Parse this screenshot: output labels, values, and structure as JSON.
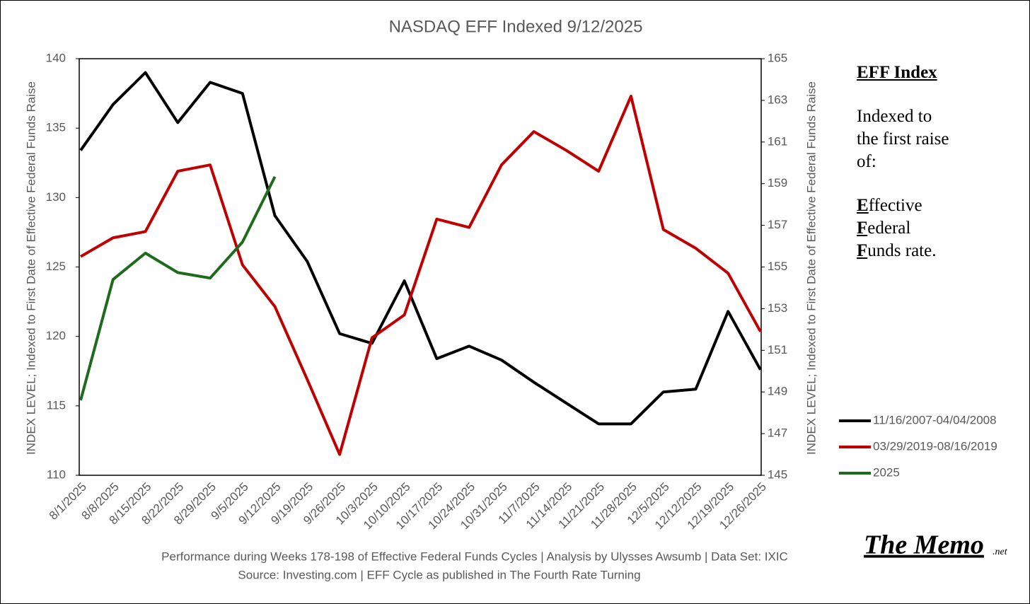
{
  "chart_data": {
    "type": "line",
    "title": "NASDAQ EFF Indexed 9/12/2025",
    "y_label": "INDEX LEVEL; Indexed to First Date of Effective Federal Funds Raise",
    "y2_label": "INDEX LEVEL; Indexed to First Date of Effective Federal Funds Raise",
    "categories": [
      "8/1/2025",
      "8/8/2025",
      "8/15/2025",
      "8/22/2025",
      "8/29/2025",
      "9/5/2025",
      "9/12/2025",
      "9/19/2025",
      "9/26/2025",
      "10/3/2025",
      "10/10/2025",
      "10/17/2025",
      "10/24/2025",
      "10/31/2025",
      "11/7/2025",
      "11/14/2025",
      "11/21/2025",
      "11/28/2025",
      "12/5/2025",
      "12/12/2025",
      "12/19/2025",
      "12/26/2025"
    ],
    "series": [
      {
        "name": "11/16/2007-04/04/2008",
        "color": "#000000",
        "values": [
          133.4,
          136.7,
          139.0,
          135.4,
          138.3,
          137.5,
          128.7,
          125.4,
          120.2,
          119.5,
          124.0,
          118.4,
          119.3,
          118.3,
          116.7,
          115.2,
          113.7,
          113.7,
          116.0,
          116.2,
          121.8,
          117.6
        ]
      },
      {
        "name": "03/29/2019-08/16/2019",
        "color": "#c00000",
        "axis": "y2",
        "values": [
          155.5,
          156.4,
          156.7,
          159.6,
          159.9,
          155.1,
          153.1,
          149.6,
          146.0,
          151.6,
          152.7,
          157.3,
          156.9,
          159.9,
          161.5,
          160.6,
          159.6,
          163.2,
          156.8,
          155.9,
          154.7,
          151.9
        ]
      },
      {
        "name": "2025",
        "color": "#1e6b1e",
        "values": [
          115.4,
          124.1,
          126.0,
          124.6,
          124.2,
          126.8,
          131.5,
          null,
          null,
          null,
          null,
          null,
          null,
          null,
          null,
          null,
          null,
          null,
          null,
          null,
          null,
          null
        ]
      }
    ],
    "ylim": [
      110,
      140
    ],
    "yticks": [
      110,
      115,
      120,
      125,
      130,
      135,
      140
    ],
    "y2lim": [
      145,
      165
    ],
    "y2ticks": [
      145,
      147,
      149,
      151,
      153,
      155,
      157,
      159,
      161,
      163,
      165
    ],
    "legend": "right",
    "annotation_title": "EFF Index",
    "annotation_lines": [
      "Indexed to",
      "the first raise",
      "of:"
    ],
    "annotation_terms": [
      "Effective",
      "Federal",
      "Funds rate."
    ],
    "footer_lines": [
      "Performance during Weeks 178-198 of Effective Federal Funds Cycles  |  Analysis  by Ulysses Awsumb  |  Data Set: IXIC",
      "Source: Investing.com  |  EFF Cycle as published in The Fourth Rate Turning"
    ],
    "brand": "The Memo",
    "brand_suffix": ".net"
  }
}
